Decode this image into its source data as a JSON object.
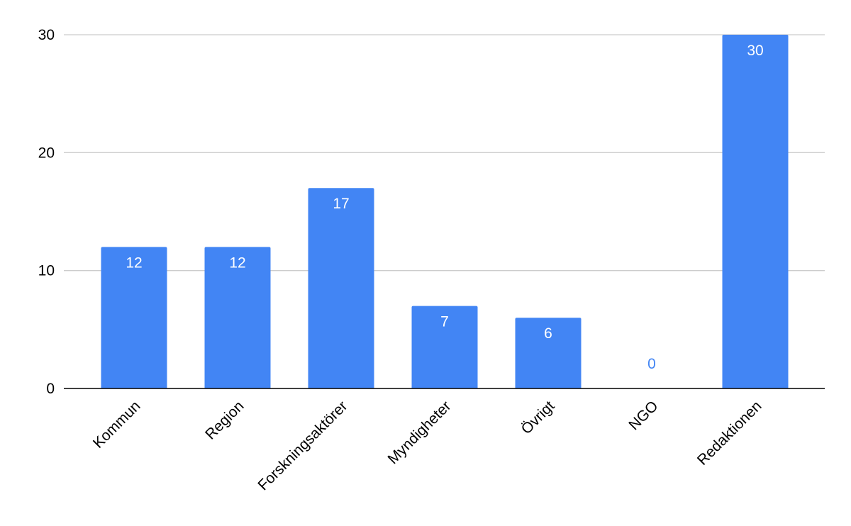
{
  "chart_data": {
    "type": "bar",
    "title": "",
    "xlabel": "",
    "ylabel": "",
    "categories": [
      "Kommun",
      "Region",
      "Forskningsaktörer",
      "Myndigheter",
      "Övrigt",
      "NGO",
      "Redaktionen"
    ],
    "values": [
      12,
      12,
      17,
      7,
      6,
      0,
      30
    ],
    "data_labels": [
      "12",
      "12",
      "17",
      "7",
      "6",
      "0",
      "30"
    ],
    "ylim": [
      0,
      30
    ],
    "y_ticks": [
      0,
      10,
      20,
      30
    ],
    "y_tick_labels": [
      "0",
      "10",
      "20",
      "30"
    ],
    "grid": true,
    "legend": "none",
    "x_label_rotation": "-45 degrees",
    "colors": {
      "bar": "#4285F4",
      "label_inside": "#FFFFFF",
      "label_outside": "#4285F4",
      "gridline": "#CCCCCC",
      "baseline": "#000000",
      "tick_text": "#000000"
    }
  }
}
